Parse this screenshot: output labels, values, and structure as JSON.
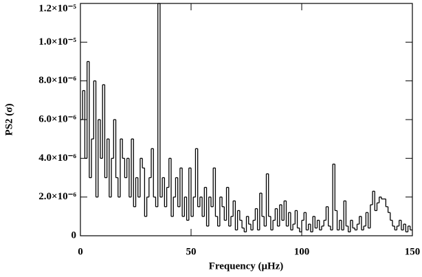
{
  "chart_data": {
    "type": "line",
    "drawstyle": "steps",
    "xlabel": "Frequency (μHz)",
    "ylabel": "PS2 (σ)",
    "xlim": [
      0,
      150
    ],
    "xticks": [
      0,
      50,
      100,
      150
    ],
    "ylim": [
      0,
      1.2e-05
    ],
    "yticks": [
      0,
      {
        "value": 2e-06,
        "label": "2.0×10⁻⁶"
      },
      {
        "value": 4e-06,
        "label": "4.0×10⁻⁶"
      },
      {
        "value": 6e-06,
        "label": "6.0×10⁻⁶"
      },
      {
        "value": 8e-06,
        "label": "8.0×10⁻⁶"
      },
      {
        "value": 1e-05,
        "label": "1.0×10⁻⁵"
      },
      {
        "value": 1.2e-05,
        "label": "1.2×10⁻⁵"
      }
    ],
    "color": "#000000",
    "x": [
      0,
      1,
      2,
      3,
      4,
      5,
      6,
      7,
      8,
      9,
      10,
      11,
      12,
      13,
      14,
      15,
      16,
      17,
      18,
      19,
      20,
      21,
      22,
      23,
      24,
      25,
      26,
      27,
      28,
      29,
      30,
      31,
      32,
      33,
      34,
      35,
      36,
      37,
      38,
      39,
      40,
      41,
      42,
      43,
      44,
      45,
      46,
      47,
      48,
      49,
      50,
      51,
      52,
      53,
      54,
      55,
      56,
      57,
      58,
      59,
      60,
      61,
      62,
      63,
      64,
      65,
      66,
      67,
      68,
      69,
      70,
      71,
      72,
      73,
      74,
      75,
      76,
      77,
      78,
      79,
      80,
      81,
      82,
      83,
      84,
      85,
      86,
      87,
      88,
      89,
      90,
      91,
      92,
      93,
      94,
      95,
      96,
      97,
      98,
      99,
      100,
      101,
      102,
      103,
      104,
      105,
      106,
      107,
      108,
      109,
      110,
      111,
      112,
      113,
      114,
      115,
      116,
      117,
      118,
      119,
      120,
      121,
      122,
      123,
      124,
      125,
      126,
      127,
      128,
      129,
      130,
      131,
      132,
      133,
      134,
      135,
      136,
      137,
      138,
      139,
      140,
      141,
      142,
      143,
      144,
      145,
      146,
      147,
      148,
      149
    ],
    "values": [
      6e-06,
      7.5e-06,
      4e-06,
      9e-06,
      3e-06,
      5e-06,
      8e-06,
      2e-06,
      6e-06,
      4e-06,
      7.8e-06,
      3e-06,
      5e-06,
      2e-06,
      4e-06,
      6e-06,
      3e-06,
      2e-06,
      5e-06,
      4e-06,
      3e-06,
      4e-06,
      2e-06,
      5e-06,
      1.5e-06,
      3e-06,
      2e-06,
      4e-06,
      3.5e-06,
      1e-06,
      2e-06,
      3e-06,
      4.5e-06,
      2e-06,
      1.5e-06,
      1.2e-05,
      2e-06,
      3e-06,
      1.5e-06,
      2.5e-06,
      4e-06,
      1e-06,
      2e-06,
      3e-06,
      1.5e-06,
      3.5e-06,
      1e-06,
      2e-06,
      8e-07,
      3.5e-06,
      1e-06,
      2e-06,
      4.5e-06,
      1.5e-06,
      2e-06,
      1e-06,
      2.5e-06,
      5e-07,
      2e-06,
      1.5e-06,
      3.5e-06,
      1e-06,
      5e-07,
      2e-06,
      1.5e-06,
      8e-07,
      2.5e-06,
      5e-07,
      1e-06,
      1.8e-06,
      3e-07,
      1.3e-06,
      8e-07,
      4e-07,
      2e-07,
      1e-06,
      6e-07,
      3e-07,
      8e-07,
      1.4e-06,
      3e-07,
      2.2e-06,
      1e-06,
      5e-07,
      3.2e-06,
      1e-06,
      3e-07,
      8e-07,
      1.4e-06,
      5e-07,
      1.6e-06,
      8e-07,
      1.8e-06,
      5e-07,
      1.2e-06,
      3e-07,
      6e-07,
      1.3e-06,
      4e-07,
      2e-07,
      8e-07,
      1.2e-06,
      3e-07,
      6e-07,
      2e-07,
      1e-06,
      4e-07,
      8e-07,
      3e-07,
      5e-07,
      8e-07,
      1.5e-06,
      5e-07,
      3e-07,
      3.7e-06,
      1.3e-06,
      3e-07,
      8e-07,
      3e-07,
      1.8e-06,
      5e-07,
      2e-07,
      8e-07,
      4e-07,
      3e-07,
      6e-07,
      1e-06,
      3e-07,
      5e-07,
      1.2e-06,
      4e-07,
      1.6e-06,
      2.3e-06,
      1.3e-06,
      1.7e-06,
      2e-06,
      1.9e-06,
      1.9e-06,
      1.5e-06,
      1.2e-06,
      8e-07,
      5e-07,
      3e-07,
      5e-07,
      8e-07,
      3e-07,
      6e-07,
      2e-07,
      5e-07,
      3e-07
    ]
  }
}
